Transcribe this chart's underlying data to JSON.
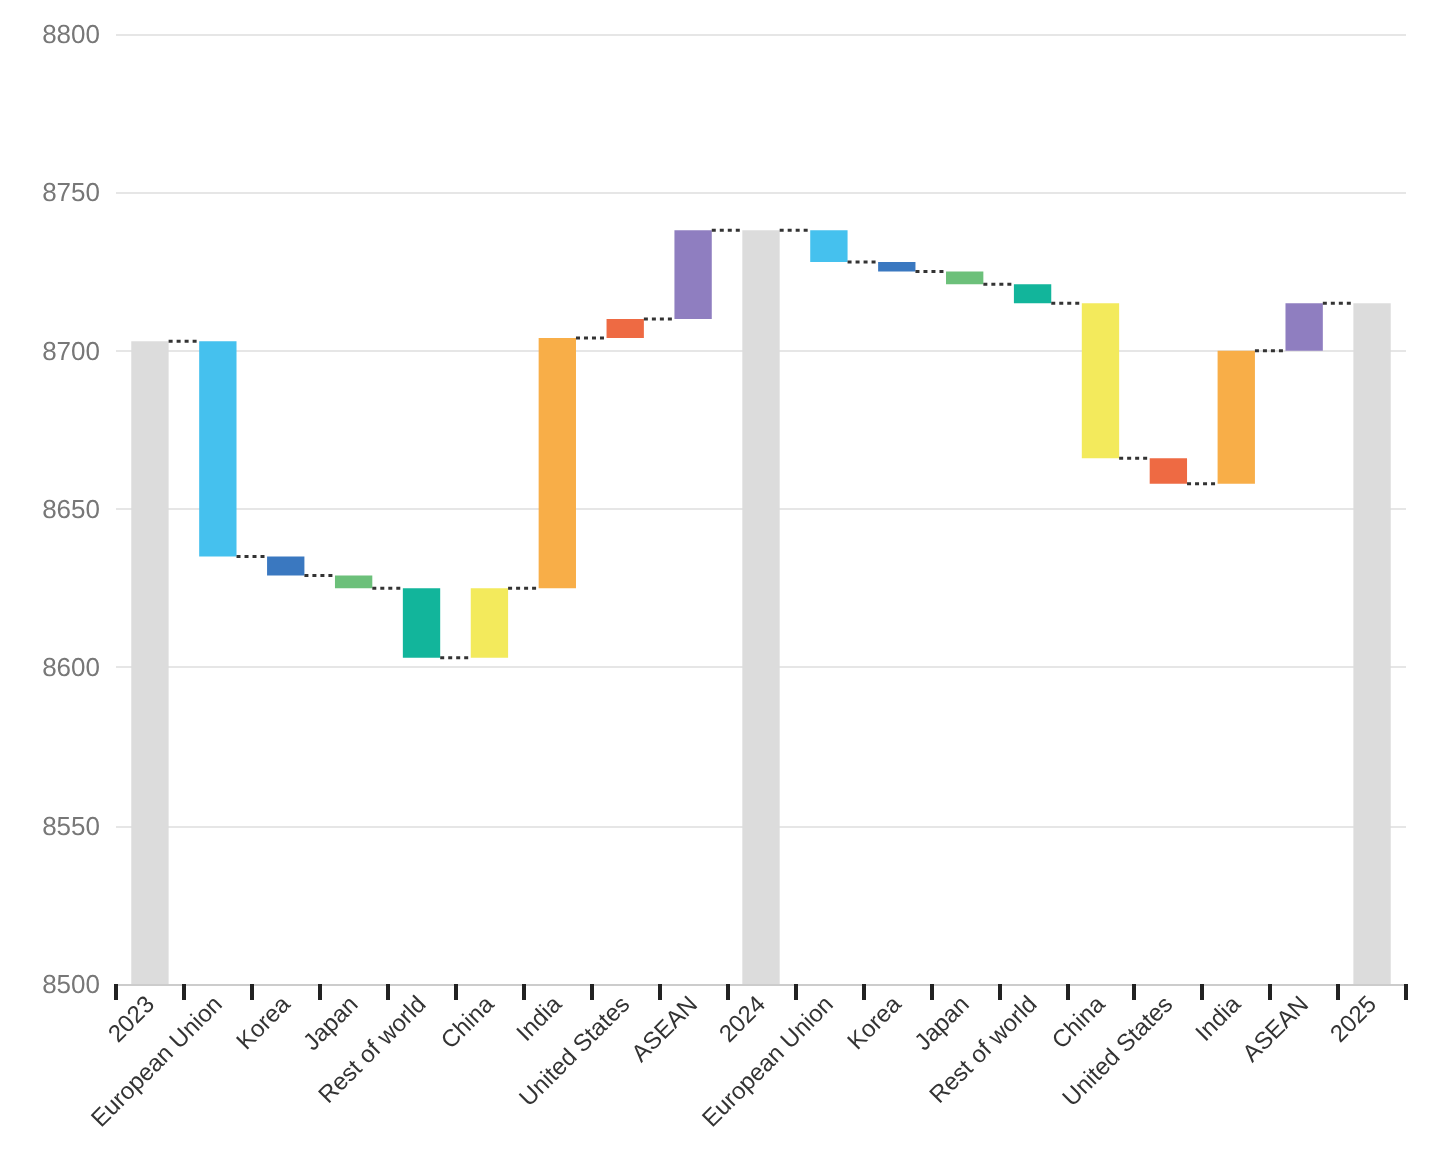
{
  "chart_data": {
    "type": "bar",
    "categories": [
      "2023",
      "European Union",
      "Korea",
      "Japan",
      "Rest of world",
      "China",
      "India",
      "United States",
      "ASEAN",
      "2024",
      "European Union",
      "Korea",
      "Japan",
      "Rest of world",
      "China",
      "United States",
      "India",
      "ASEAN",
      "2025"
    ],
    "values": [
      8703,
      -68,
      -6,
      -4,
      -22,
      22,
      79,
      6,
      28,
      8738,
      -10,
      -3,
      -4,
      -6,
      -49,
      -8,
      42,
      15,
      8715
    ],
    "base": [
      null,
      8703,
      8635,
      8629,
      8625,
      8603,
      8625,
      8704,
      8710,
      null,
      8738,
      8728,
      8725,
      8721,
      8715,
      8666,
      8658,
      8700,
      null
    ],
    "colors": [
      "#dcdcdc",
      "#45c1ee",
      "#3a78c0",
      "#6cc07a",
      "#12b59b",
      "#f3ea5c",
      "#f8ae48",
      "#ee6a43",
      "#8f7ec0",
      "#dcdcdc",
      "#45c1ee",
      "#3a78c0",
      "#6cc07a",
      "#12b59b",
      "#f3ea5c",
      "#ee6a43",
      "#f8ae48",
      "#8f7ec0",
      "#dcdcdc"
    ],
    "ylim": [
      8500,
      8800
    ],
    "yticks": [
      8500,
      8550,
      8600,
      8650,
      8700,
      8750,
      8800
    ],
    "grid": "y"
  }
}
